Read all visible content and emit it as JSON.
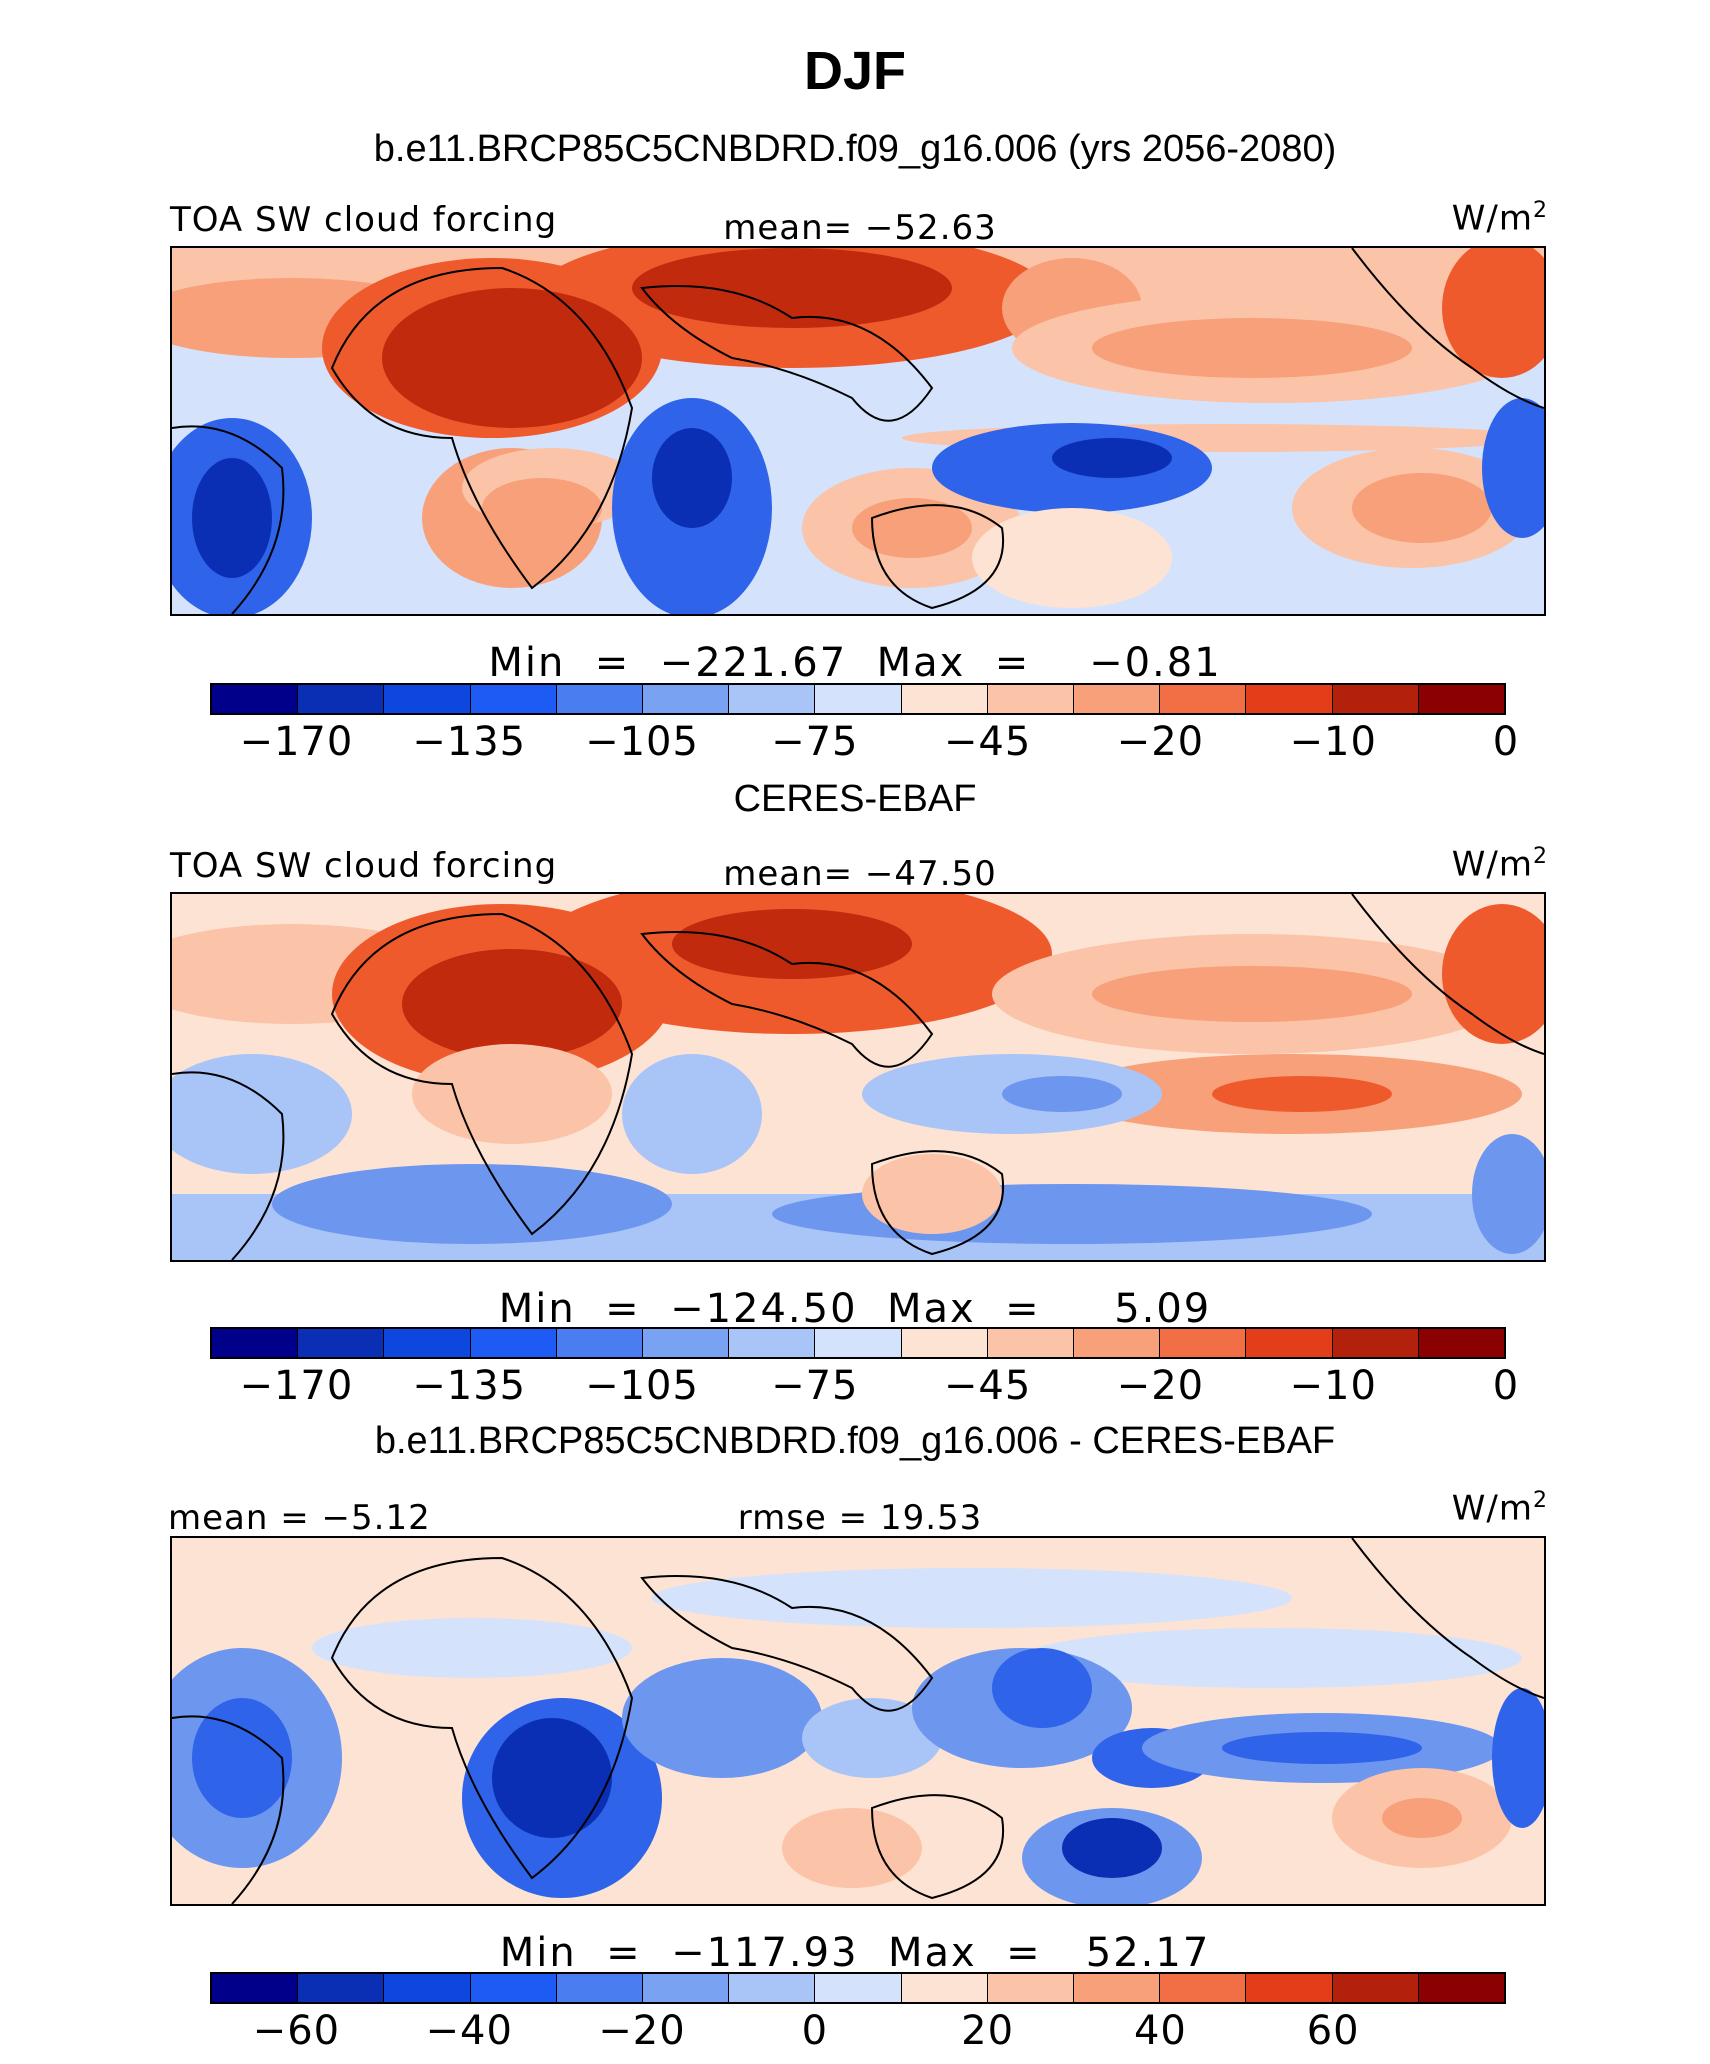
{
  "title": "DJF",
  "panels": [
    {
      "title": "b.e11.BRCP85C5CNBDRD.f09_g16.006 (yrs 2056-2080)",
      "left_label": "TOA SW cloud forcing",
      "center_label": "mean= −52.63",
      "unit": "W/m",
      "unit_exp": "2",
      "stats": "Min  =  −221.67  Max  =    −0.81",
      "colorbar_ticks": [
        "−170",
        "−135",
        "−105",
        "−75",
        "−45",
        "−20",
        "−10",
        "0"
      ],
      "map_style": "model"
    },
    {
      "title": "CERES-EBAF",
      "left_label": "TOA SW cloud forcing",
      "center_label": "mean= −47.50",
      "unit": "W/m",
      "unit_exp": "2",
      "stats": "Min  =  −124.50  Max  =     5.09",
      "colorbar_ticks": [
        "−170",
        "−135",
        "−105",
        "−75",
        "−45",
        "−20",
        "−10",
        "0"
      ],
      "map_style": "obs"
    },
    {
      "title": "b.e11.BRCP85C5CNBDRD.f09_g16.006 - CERES-EBAF",
      "left_label": "mean =   −5.12",
      "center_label": "rmse =   19.53",
      "unit": "W/m",
      "unit_exp": "2",
      "stats": "Min  =  −117.93  Max  =   52.17",
      "colorbar_ticks": [
        "−60",
        "−40",
        "−20",
        "0",
        "20",
        "40",
        "60"
      ],
      "map_style": "diff"
    }
  ],
  "colorbar_colors": [
    "#00008b",
    "#0a2fb4",
    "#0d47de",
    "#1e5bf5",
    "#4a7ef0",
    "#7aa2f2",
    "#a9c4f7",
    "#d4e3fb",
    "#fde3d3",
    "#fbc3a7",
    "#f7a07a",
    "#f26f45",
    "#e23e1a",
    "#b3200c",
    "#8b0000"
  ],
  "colors": {
    "deep_blue": "#0a2fb4",
    "blue": "#2f63ea",
    "mid_blue": "#6d96ee",
    "light_blue": "#a9c4f7",
    "pale_blue": "#d4e3fb",
    "pale_red": "#fde3d3",
    "light_red": "#fbc3a7",
    "mid_red": "#f7a07a",
    "red": "#ef5a2d",
    "deep_red": "#c22a0e",
    "dark_red": "#a51c08"
  }
}
